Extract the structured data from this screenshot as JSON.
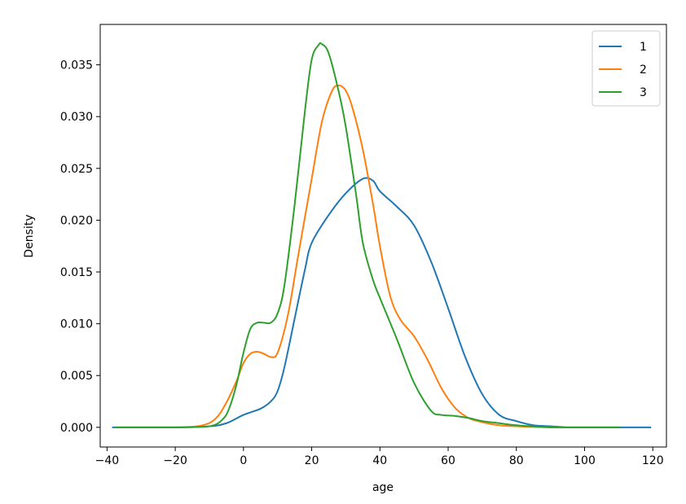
{
  "chart_data": {
    "type": "line",
    "xlabel": "age",
    "ylabel": "Density",
    "xlim": [
      -42,
      124
    ],
    "ylim": [
      -0.0019,
      0.0389
    ],
    "xticks": [
      -40,
      -20,
      0,
      20,
      40,
      60,
      80,
      100,
      120
    ],
    "xtick_labels": [
      "−40",
      "−20",
      "0",
      "20",
      "40",
      "60",
      "80",
      "100",
      "120"
    ],
    "yticks": [
      0.0,
      0.005,
      0.01,
      0.015,
      0.02,
      0.025,
      0.03,
      0.035
    ],
    "ytick_labels": [
      "0.000",
      "0.005",
      "0.010",
      "0.015",
      "0.020",
      "0.025",
      "0.030",
      "0.035"
    ],
    "grid": false,
    "legend": {
      "position": "top-right"
    },
    "series": [
      {
        "name": "1",
        "color": "#1f77b4",
        "x": [
          -38.5,
          -20,
          -10,
          -5,
          0,
          5,
          8,
          10,
          12,
          15,
          18,
          20,
          25,
          30,
          35,
          38,
          40,
          45,
          50,
          55,
          60,
          65,
          70,
          75,
          80,
          85,
          90,
          95,
          100,
          110,
          119.5
        ],
        "y": [
          0.0,
          0.0,
          0.0001,
          0.0004,
          0.0012,
          0.0018,
          0.0025,
          0.0035,
          0.0058,
          0.0105,
          0.0152,
          0.0178,
          0.0205,
          0.0226,
          0.024,
          0.0238,
          0.0228,
          0.0213,
          0.0195,
          0.016,
          0.0115,
          0.0068,
          0.0032,
          0.0012,
          0.0006,
          0.0002,
          0.0001,
          0.0,
          0.0,
          0.0,
          0.0
        ]
      },
      {
        "name": "2",
        "color": "#ff7f0e",
        "x": [
          -37.5,
          -20,
          -12,
          -8,
          -5,
          -2,
          0,
          2,
          4,
          6,
          8,
          10,
          13,
          16,
          20,
          23,
          26,
          28,
          30,
          32,
          35,
          38,
          40,
          43,
          46,
          50,
          54,
          58,
          62,
          66,
          70,
          75,
          80,
          90,
          100,
          110.5
        ],
        "y": [
          0.0,
          0.0,
          0.0002,
          0.0009,
          0.0024,
          0.0045,
          0.0062,
          0.0071,
          0.0073,
          0.0071,
          0.0068,
          0.0072,
          0.0108,
          0.0165,
          0.024,
          0.0295,
          0.0325,
          0.033,
          0.0325,
          0.0308,
          0.0268,
          0.0215,
          0.0175,
          0.0127,
          0.0104,
          0.0088,
          0.0065,
          0.0038,
          0.0019,
          0.0009,
          0.0005,
          0.0002,
          0.0001,
          0.0,
          0.0,
          0.0
        ]
      },
      {
        "name": "3",
        "color": "#2ca02c",
        "x": [
          -37.5,
          -20,
          -10,
          -6,
          -4,
          -2,
          0,
          2,
          4,
          6,
          8,
          10,
          12,
          15,
          18,
          20,
          22,
          23,
          25,
          28,
          30,
          33,
          35,
          38,
          40,
          45,
          50,
          55,
          58,
          62,
          66,
          70,
          75,
          80,
          90,
          100,
          110.5
        ],
        "y": [
          0.0,
          0.0,
          0.0001,
          0.0008,
          0.002,
          0.0042,
          0.0072,
          0.0095,
          0.0101,
          0.0101,
          0.0101,
          0.011,
          0.0137,
          0.0215,
          0.0305,
          0.0355,
          0.0369,
          0.037,
          0.0361,
          0.0323,
          0.029,
          0.0225,
          0.0178,
          0.0142,
          0.0125,
          0.0085,
          0.0043,
          0.0016,
          0.0012,
          0.0011,
          0.0009,
          0.0006,
          0.0004,
          0.0002,
          0.0,
          0.0,
          0.0
        ]
      }
    ]
  }
}
